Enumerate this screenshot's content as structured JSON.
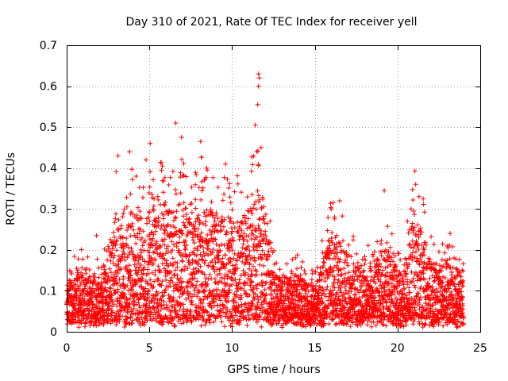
{
  "chart_data": {
    "type": "scatter",
    "title": "Day 310 of 2021, Rate Of TEC Index for receiver yell",
    "xlabel": "GPS time / hours",
    "ylabel": "ROTI / TECUs",
    "xlim": [
      0,
      25
    ],
    "ylim": [
      0,
      0.7
    ],
    "xticks": [
      0,
      5,
      10,
      15,
      20,
      25
    ],
    "yticks": [
      0,
      0.1,
      0.2,
      0.3,
      0.4,
      0.5,
      0.6,
      0.7
    ],
    "grid": true,
    "marker": "+",
    "color": "#ff0000",
    "envelope": {
      "hours": [
        0,
        0.5,
        1,
        1.5,
        2,
        2.5,
        3,
        3.5,
        4,
        4.5,
        5,
        5.5,
        6,
        6.5,
        7,
        7.5,
        8,
        8.5,
        9,
        9.5,
        10,
        10.5,
        11,
        11.5,
        12,
        12.5,
        13,
        13.5,
        14,
        14.5,
        15,
        15.5,
        16,
        16.5,
        17,
        17.5,
        18,
        18.5,
        19,
        19.5,
        20,
        20.5,
        21,
        21.5,
        22,
        22.5,
        23,
        23.5,
        24
      ],
      "typical_max": [
        0.12,
        0.14,
        0.16,
        0.15,
        0.14,
        0.16,
        0.3,
        0.22,
        0.32,
        0.25,
        0.3,
        0.3,
        0.33,
        0.3,
        0.32,
        0.28,
        0.33,
        0.3,
        0.3,
        0.28,
        0.3,
        0.28,
        0.3,
        0.35,
        0.3,
        0.15,
        0.13,
        0.14,
        0.14,
        0.12,
        0.11,
        0.18,
        0.25,
        0.22,
        0.2,
        0.16,
        0.17,
        0.15,
        0.2,
        0.2,
        0.15,
        0.15,
        0.3,
        0.25,
        0.18,
        0.16,
        0.18,
        0.18,
        0.12
      ]
    },
    "notable_points": [
      {
        "x": 11.6,
        "y": 0.63
      },
      {
        "x": 11.65,
        "y": 0.62
      },
      {
        "x": 11.6,
        "y": 0.6
      },
      {
        "x": 11.55,
        "y": 0.555
      },
      {
        "x": 6.6,
        "y": 0.51
      },
      {
        "x": 11.4,
        "y": 0.505
      },
      {
        "x": 6.95,
        "y": 0.475
      },
      {
        "x": 8.1,
        "y": 0.465
      },
      {
        "x": 5.05,
        "y": 0.46
      },
      {
        "x": 11.75,
        "y": 0.45
      },
      {
        "x": 3.8,
        "y": 0.44
      },
      {
        "x": 11.5,
        "y": 0.44
      },
      {
        "x": 3.1,
        "y": 0.43
      },
      {
        "x": 4.8,
        "y": 0.42
      },
      {
        "x": 9.6,
        "y": 0.41
      },
      {
        "x": 8.5,
        "y": 0.395
      },
      {
        "x": 4.2,
        "y": 0.38
      },
      {
        "x": 21.1,
        "y": 0.36
      },
      {
        "x": 19.2,
        "y": 0.345
      },
      {
        "x": 21.3,
        "y": 0.33
      },
      {
        "x": 16.5,
        "y": 0.32
      },
      {
        "x": 16.0,
        "y": 0.3
      },
      {
        "x": 20.6,
        "y": 0.27
      },
      {
        "x": 1.8,
        "y": 0.235
      }
    ]
  }
}
